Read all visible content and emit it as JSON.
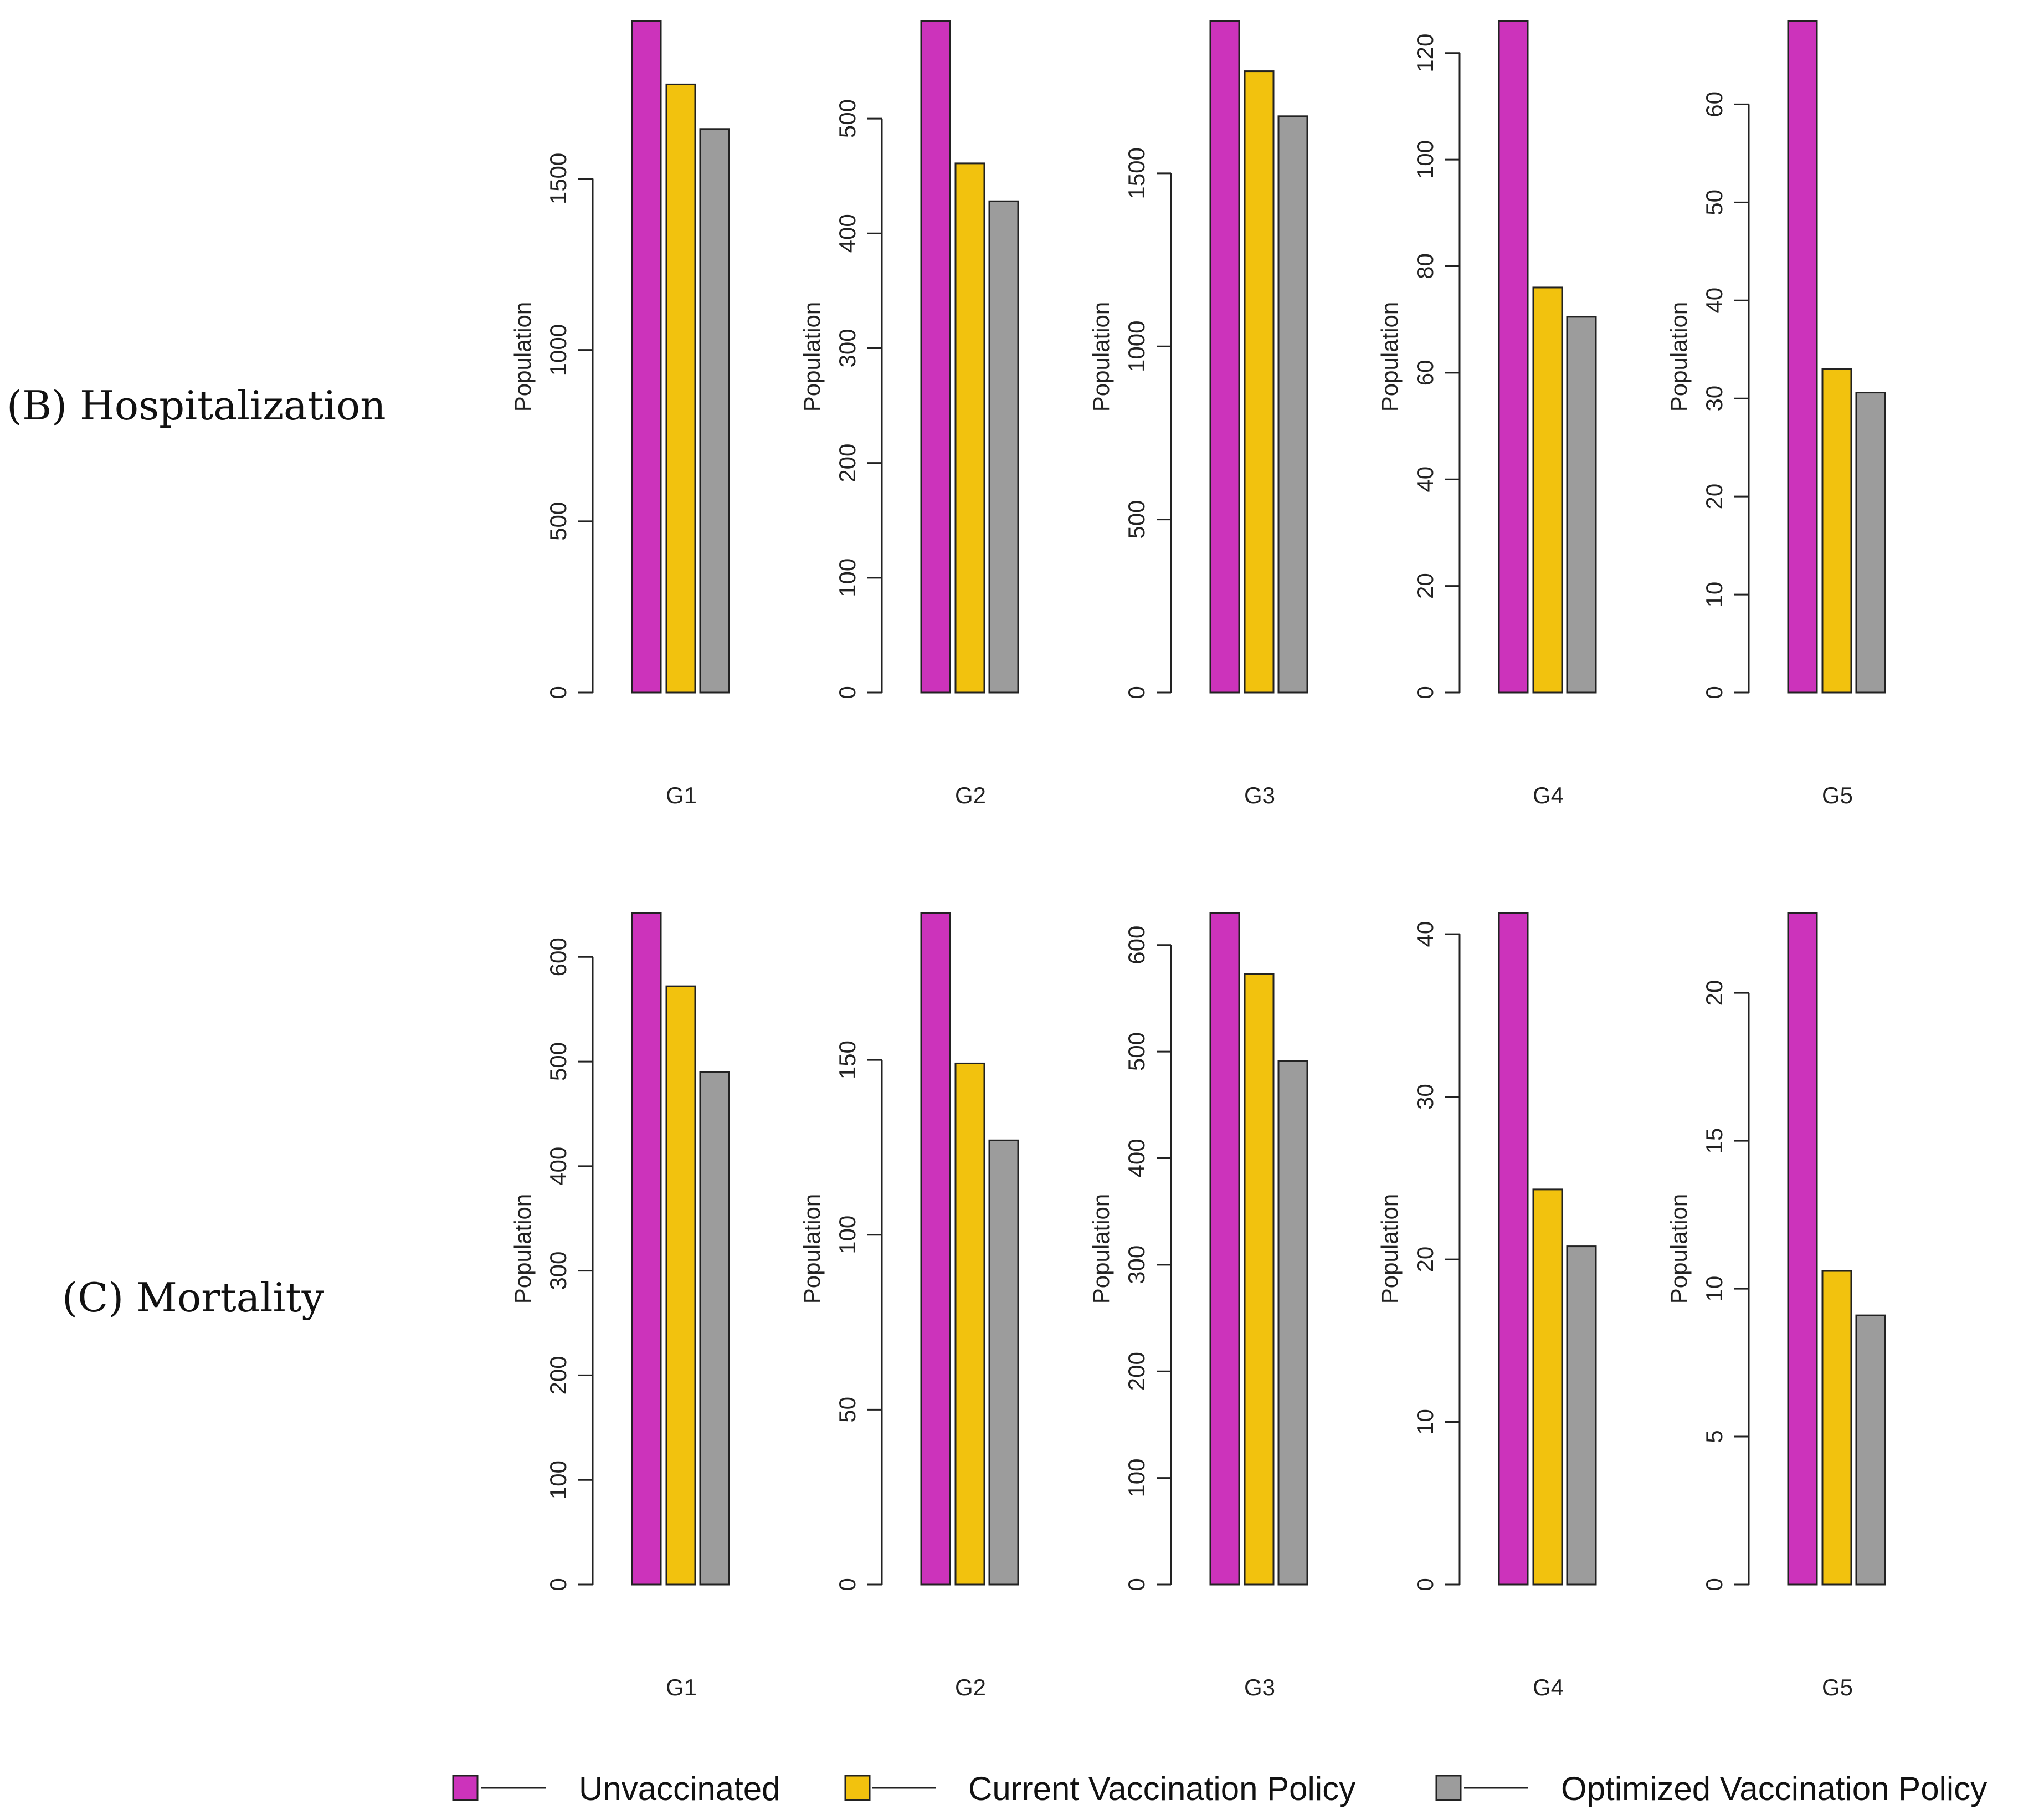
{
  "colors": {
    "unvaccinated": "#cc33bb",
    "current": "#f2c20e",
    "optimized": "#9c9c9c",
    "axis": "#222222"
  },
  "legend": [
    {
      "label": "Unvaccinated",
      "color": "#cc33bb"
    },
    {
      "label": "Current Vaccination Policy",
      "color": "#f2c20e"
    },
    {
      "label": "Optimized Vaccination Policy",
      "color": "#9c9c9c"
    }
  ],
  "chart_data": [
    {
      "type": "bar",
      "row_label": "(B)   Hospitalization",
      "panels": [
        {
          "xlabel": "G1",
          "ylabel": "Population",
          "ylim": [
            0,
            1960
          ],
          "ticks": [
            0,
            500,
            1000,
            1500
          ],
          "series": [
            {
              "name": "Unvaccinated",
              "value": 1960
            },
            {
              "name": "Current Vaccination Policy",
              "value": 1775
            },
            {
              "name": "Optimized Vaccination Policy",
              "value": 1645
            }
          ]
        },
        {
          "xlabel": "G2",
          "ylabel": "Population",
          "ylim": [
            0,
            585
          ],
          "ticks": [
            0,
            100,
            200,
            300,
            400,
            500
          ],
          "series": [
            {
              "name": "Unvaccinated",
              "value": 585
            },
            {
              "name": "Current Vaccination Policy",
              "value": 461
            },
            {
              "name": "Optimized Vaccination Policy",
              "value": 428
            }
          ]
        },
        {
          "xlabel": "G3",
          "ylabel": "Population",
          "ylim": [
            0,
            1940
          ],
          "ticks": [
            0,
            500,
            1000,
            1500
          ],
          "series": [
            {
              "name": "Unvaccinated",
              "value": 1940
            },
            {
              "name": "Current Vaccination Policy",
              "value": 1795
            },
            {
              "name": "Optimized Vaccination Policy",
              "value": 1665
            }
          ]
        },
        {
          "xlabel": "G4",
          "ylabel": "Population",
          "ylim": [
            0,
            126
          ],
          "ticks": [
            0,
            20,
            40,
            60,
            80,
            100,
            120
          ],
          "series": [
            {
              "name": "Unvaccinated",
              "value": 126
            },
            {
              "name": "Current Vaccination Policy",
              "value": 76
            },
            {
              "name": "Optimized Vaccination Policy",
              "value": 70.5
            }
          ]
        },
        {
          "xlabel": "G5",
          "ylabel": "Population",
          "ylim": [
            0,
            68.5
          ],
          "ticks": [
            0,
            10,
            20,
            30,
            40,
            50,
            60
          ],
          "series": [
            {
              "name": "Unvaccinated",
              "value": 68.5
            },
            {
              "name": "Current Vaccination Policy",
              "value": 33
            },
            {
              "name": "Optimized Vaccination Policy",
              "value": 30.6
            }
          ]
        }
      ]
    },
    {
      "type": "bar",
      "row_label": "(C)   Mortality",
      "panels": [
        {
          "xlabel": "G1",
          "ylabel": "Population",
          "ylim": [
            0,
            642
          ],
          "ticks": [
            0,
            100,
            200,
            300,
            400,
            500,
            600
          ],
          "series": [
            {
              "name": "Unvaccinated",
              "value": 642
            },
            {
              "name": "Current Vaccination Policy",
              "value": 572
            },
            {
              "name": "Optimized Vaccination Policy",
              "value": 490
            }
          ]
        },
        {
          "xlabel": "G2",
          "ylabel": "Population",
          "ylim": [
            0,
            192
          ],
          "ticks": [
            0,
            50,
            100,
            150
          ],
          "series": [
            {
              "name": "Unvaccinated",
              "value": 192
            },
            {
              "name": "Current Vaccination Policy",
              "value": 149
            },
            {
              "name": "Optimized Vaccination Policy",
              "value": 127
            }
          ]
        },
        {
          "xlabel": "G3",
          "ylabel": "Population",
          "ylim": [
            0,
            630
          ],
          "ticks": [
            0,
            100,
            200,
            300,
            400,
            500,
            600
          ],
          "series": [
            {
              "name": "Unvaccinated",
              "value": 630
            },
            {
              "name": "Current Vaccination Policy",
              "value": 573
            },
            {
              "name": "Optimized Vaccination Policy",
              "value": 491
            }
          ]
        },
        {
          "xlabel": "G4",
          "ylabel": "Population",
          "ylim": [
            0,
            41.3
          ],
          "ticks": [
            0,
            10,
            20,
            30,
            40
          ],
          "series": [
            {
              "name": "Unvaccinated",
              "value": 41.3
            },
            {
              "name": "Current Vaccination Policy",
              "value": 24.3
            },
            {
              "name": "Optimized Vaccination Policy",
              "value": 20.8
            }
          ]
        },
        {
          "xlabel": "G5",
          "ylabel": "Population",
          "ylim": [
            0,
            22.7
          ],
          "ticks": [
            0,
            5,
            10,
            15,
            20
          ],
          "series": [
            {
              "name": "Unvaccinated",
              "value": 22.7
            },
            {
              "name": "Current Vaccination Policy",
              "value": 10.6
            },
            {
              "name": "Optimized Vaccination Policy",
              "value": 9.1
            }
          ]
        }
      ]
    }
  ]
}
